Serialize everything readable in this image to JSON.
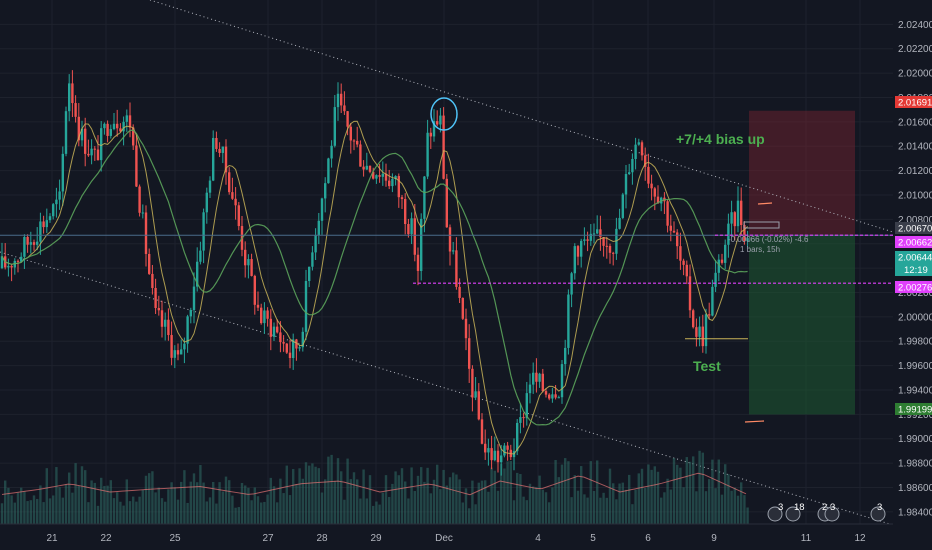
{
  "chart_data": {
    "type": "candlestick",
    "ylim": [
      1.983,
      2.026
    ],
    "y_ticks": [
      "2.02400",
      "2.02200",
      "2.02000",
      "2.01800",
      "2.01600",
      "2.01400",
      "2.01200",
      "2.01000",
      "2.00800",
      "2.00600",
      "2.00400",
      "2.00200",
      "2.00000",
      "1.99800",
      "1.99600",
      "1.99400",
      "1.99200",
      "1.99000",
      "1.98800",
      "1.98600",
      "1.98400"
    ],
    "x_ticks": [
      "21",
      "22",
      "25",
      "27",
      "28",
      "29",
      "Dec",
      "4",
      "5",
      "6",
      "9",
      "11",
      "12"
    ],
    "annotations": {
      "bias": "+7/+4 bias up",
      "test": "Test"
    },
    "position_info": {
      "line1": "-0.00066 (-0.02%) -4.6",
      "line2": "1 bars, 15h"
    },
    "price_tags": {
      "target": "2.01691",
      "current": "2.00670",
      "marker": "2.00662",
      "last": "2.00644",
      "countdown": "12:19",
      "support": "2.00276",
      "stop": "1.99199"
    },
    "events": [
      {
        "count": "3"
      },
      {
        "count": "18"
      },
      {
        "count": "2"
      },
      {
        "count": "3"
      },
      {
        "count": "3"
      }
    ],
    "levels": {
      "resistance_line": 2.0067,
      "support_line": 2.00276,
      "flat_line": 1.9982
    },
    "trade": {
      "entry": 2.0067,
      "target": 2.01691,
      "stop": 1.99199
    },
    "colors": {
      "bg": "#131722",
      "up": "#26a69a",
      "down": "#ef5350",
      "ma_fast": "#c9b458",
      "ma_slow": "#5ba35b",
      "level": "#e040fb",
      "bias_text": "#4caf50",
      "circle": "#4fc3f7"
    },
    "anchors": [
      [
        0,
        2.004
      ],
      [
        18,
        2.005
      ],
      [
        40,
        2.0075
      ],
      [
        60,
        2.0095
      ],
      [
        68,
        2.02
      ],
      [
        80,
        2.015
      ],
      [
        95,
        2.013
      ],
      [
        110,
        2.0165
      ],
      [
        130,
        2.016
      ],
      [
        142,
        2.008
      ],
      [
        155,
        2.0
      ],
      [
        165,
        1.999
      ],
      [
        180,
        1.996
      ],
      [
        200,
        2.006
      ],
      [
        215,
        2.015
      ],
      [
        230,
        2.011
      ],
      [
        245,
        2.005
      ],
      [
        260,
        2.0
      ],
      [
        275,
        1.999
      ],
      [
        290,
        1.997
      ],
      [
        300,
        1.998
      ],
      [
        312,
        2.006
      ],
      [
        325,
        2.011
      ],
      [
        337,
        2.0175
      ],
      [
        350,
        2.015
      ],
      [
        365,
        2.0125
      ],
      [
        380,
        2.012
      ],
      [
        395,
        2.011
      ],
      [
        412,
        2.007
      ],
      [
        418,
        2.004
      ],
      [
        428,
        2.015
      ],
      [
        440,
        2.0165
      ],
      [
        448,
        2.006
      ],
      [
        455,
        2.004
      ],
      [
        468,
        1.996
      ],
      [
        485,
        1.989
      ],
      [
        500,
        1.9885
      ],
      [
        512,
        1.989
      ],
      [
        520,
        1.991
      ],
      [
        530,
        1.995
      ],
      [
        545,
        1.994
      ],
      [
        560,
        1.9945
      ],
      [
        575,
        2.006
      ],
      [
        590,
        2.006
      ],
      [
        605,
        2.0065
      ],
      [
        615,
        2.006
      ],
      [
        630,
        2.013
      ],
      [
        640,
        2.015
      ],
      [
        650,
        2.011
      ],
      [
        662,
        2.01
      ],
      [
        672,
        2.007
      ],
      [
        685,
        2.003
      ],
      [
        695,
        1.999
      ],
      [
        703,
        1.9985
      ],
      [
        712,
        2.002
      ],
      [
        725,
        2.006
      ],
      [
        738,
        2.009
      ],
      [
        748,
        2.0062
      ]
    ],
    "volume_anchors": [
      [
        0,
        0.35
      ],
      [
        40,
        0.45
      ],
      [
        70,
        0.55
      ],
      [
        110,
        0.4
      ],
      [
        150,
        0.45
      ],
      [
        200,
        0.5
      ],
      [
        250,
        0.35
      ],
      [
        300,
        0.55
      ],
      [
        340,
        0.6
      ],
      [
        380,
        0.4
      ],
      [
        430,
        0.55
      ],
      [
        470,
        0.35
      ],
      [
        500,
        0.6
      ],
      [
        540,
        0.45
      ],
      [
        580,
        0.7
      ],
      [
        620,
        0.4
      ],
      [
        660,
        0.55
      ],
      [
        700,
        0.75
      ],
      [
        748,
        0.35
      ]
    ]
  }
}
